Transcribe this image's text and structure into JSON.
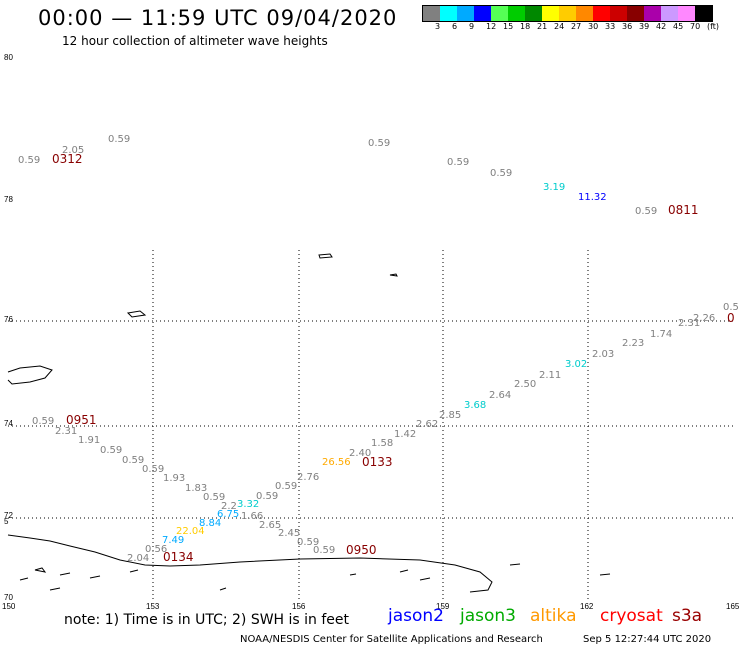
{
  "header": {
    "title": "00:00 — 11:59 UTC 09/04/2020",
    "subtitle": "12 hour collection of altimeter wave heights"
  },
  "colorbar": {
    "colors": [
      "#808080",
      "#00ffff",
      "#00aaff",
      "#0000ff",
      "#55ff55",
      "#00cc00",
      "#008800",
      "#ffff00",
      "#ffcc00",
      "#ff8800",
      "#ff0000",
      "#cc0000",
      "#880000",
      "#aa00aa",
      "#cc99ff",
      "#ff88ff",
      "#000000"
    ],
    "labels": [
      "3",
      "6",
      "9",
      "12",
      "15",
      "18",
      "21",
      "24",
      "27",
      "30",
      "33",
      "36",
      "39",
      "42",
      "45",
      "70",
      "(ft)"
    ]
  },
  "axes": {
    "lat_labels": [
      "80",
      "78",
      "76",
      "74",
      "72",
      "5",
      "70"
    ],
    "lon_labels": [
      "150",
      "153",
      "156",
      "159",
      "162",
      "165"
    ]
  },
  "readings": [
    {
      "text": "0.59",
      "color": "#808080"
    },
    {
      "text": "2.05",
      "color": "#808080"
    },
    {
      "text": "0312",
      "color": "#880000"
    },
    {
      "text": "0.59",
      "color": "#808080"
    },
    {
      "text": "0.59",
      "color": "#808080"
    },
    {
      "text": "0.59",
      "color": "#808080"
    },
    {
      "text": "0.59",
      "color": "#808080"
    },
    {
      "text": "3.19",
      "color": "#00cccc"
    },
    {
      "text": "11.32",
      "color": "#0000ff"
    },
    {
      "text": "0.59",
      "color": "#808080"
    },
    {
      "text": "0811",
      "color": "#880000"
    },
    {
      "text": "0.5",
      "color": "#808080"
    },
    {
      "text": "2.26",
      "color": "#808080"
    },
    {
      "text": "0",
      "color": "#880000"
    },
    {
      "text": "2.31",
      "color": "#808080"
    },
    {
      "text": "1.74",
      "color": "#808080"
    },
    {
      "text": "2.23",
      "color": "#808080"
    },
    {
      "text": "2.03",
      "color": "#808080"
    },
    {
      "text": "3.02",
      "color": "#00cccc"
    },
    {
      "text": "2.11",
      "color": "#808080"
    },
    {
      "text": "2.50",
      "color": "#808080"
    },
    {
      "text": "2.64",
      "color": "#808080"
    },
    {
      "text": "3.68",
      "color": "#00cccc"
    },
    {
      "text": "2.85",
      "color": "#808080"
    },
    {
      "text": "2.62",
      "color": "#808080"
    },
    {
      "text": "1.42",
      "color": "#808080"
    },
    {
      "text": "1.58",
      "color": "#808080"
    },
    {
      "text": "2.40",
      "color": "#808080"
    },
    {
      "text": "26.56",
      "color": "#ffaa00"
    },
    {
      "text": "0133",
      "color": "#880000"
    },
    {
      "text": "2.76",
      "color": "#808080"
    },
    {
      "text": "0.59",
      "color": "#808080"
    },
    {
      "text": "0.59",
      "color": "#808080"
    },
    {
      "text": "0951",
      "color": "#880000"
    },
    {
      "text": "2.31",
      "color": "#808080"
    },
    {
      "text": "1.91",
      "color": "#808080"
    },
    {
      "text": "0.59",
      "color": "#808080"
    },
    {
      "text": "0.59",
      "color": "#808080"
    },
    {
      "text": "0.59",
      "color": "#808080"
    },
    {
      "text": "1.93",
      "color": "#808080"
    },
    {
      "text": "1.83",
      "color": "#808080"
    },
    {
      "text": "0.59",
      "color": "#808080"
    },
    {
      "text": "2.2",
      "color": "#808080"
    },
    {
      "text": "3.32",
      "color": "#00cccc"
    },
    {
      "text": "0.59",
      "color": "#808080"
    },
    {
      "text": "6.75",
      "color": "#00aaff"
    },
    {
      "text": "1.66",
      "color": "#808080"
    },
    {
      "text": "8.84",
      "color": "#00aaff"
    },
    {
      "text": "2.65",
      "color": "#808080"
    },
    {
      "text": "22.04",
      "color": "#ffcc00"
    },
    {
      "text": "2.45",
      "color": "#808080"
    },
    {
      "text": "7.49",
      "color": "#00aaff"
    },
    {
      "text": "0.59",
      "color": "#808080"
    },
    {
      "text": "0.56",
      "color": "#808080"
    },
    {
      "text": "0.59",
      "color": "#808080"
    },
    {
      "text": "0950",
      "color": "#880000"
    },
    {
      "text": "2.04",
      "color": "#808080"
    },
    {
      "text": "0134",
      "color": "#880000"
    }
  ],
  "footer": {
    "note": "note: 1) Time is in UTC; 2) SWH is in feet",
    "satellites": [
      {
        "name": "jason2",
        "color": "#0000ff"
      },
      {
        "name": "jason3",
        "color": "#00aa00"
      },
      {
        "name": "altika",
        "color": "#ff9900"
      },
      {
        "name": "cryosat",
        "color": "#ff0000"
      },
      {
        "name": "s3a",
        "color": "#990000"
      }
    ],
    "credit": "NOAA/NESDIS Center for Satellite Applications and Research",
    "timestamp": "Sep  5 12:27:44 UTC 2020"
  }
}
